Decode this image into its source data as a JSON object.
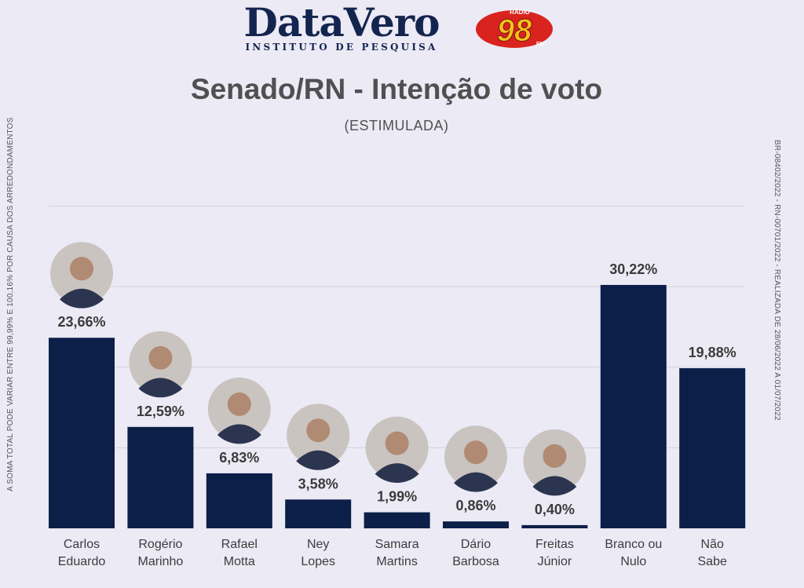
{
  "header": {
    "logo_name": "DataVero",
    "logo_subtitle": "INSTITUTO DE PESQUISA",
    "radio_top": "RÁDIO",
    "radio_number": "98",
    "radio_fm": "FM"
  },
  "side_notes": {
    "left": "A SOMA TOTAL PODE VARIAR ENTRE 99,99% E 100,16% POR CAUSA DOS ARREDONDAMENTOS",
    "right": "BR-08402/2022 - RN-00701/2022 - REALIZADA DE 28/06/2022 A 01/07/2022"
  },
  "colors": {
    "bar": "#0c1f48",
    "grid": "#d3d1de",
    "background": "#eceaf5",
    "brand": "#13254f",
    "radio": "#d9231f",
    "radio_accent": "#f2c21b"
  },
  "chart_data": {
    "type": "bar",
    "title": "Senado/RN - Intenção de voto",
    "subtitle": "(ESTIMULADA)",
    "categories": [
      [
        "Carlos",
        "Eduardo"
      ],
      [
        "Rogério",
        "Marinho"
      ],
      [
        "Rafael",
        "Motta"
      ],
      [
        "Ney",
        "Lopes"
      ],
      [
        "Samara",
        "Martins"
      ],
      [
        "Dário",
        "Barbosa"
      ],
      [
        "Freitas",
        "Júnior"
      ],
      [
        "Branco ou",
        "Nulo"
      ],
      [
        "Não",
        "Sabe"
      ]
    ],
    "values": [
      23.66,
      12.59,
      6.83,
      3.58,
      1.99,
      0.86,
      0.4,
      30.22,
      19.88
    ],
    "value_labels": [
      "23,66%",
      "12,59%",
      "6,83%",
      "3,58%",
      "1,99%",
      "0,86%",
      "0,40%",
      "30,22%",
      "19,88%"
    ],
    "has_photo": [
      true,
      true,
      true,
      true,
      true,
      true,
      true,
      false,
      false
    ],
    "ylim": [
      0,
      40
    ],
    "gridlines": [
      10,
      20,
      30,
      40
    ],
    "grid": true,
    "legend": "none"
  }
}
